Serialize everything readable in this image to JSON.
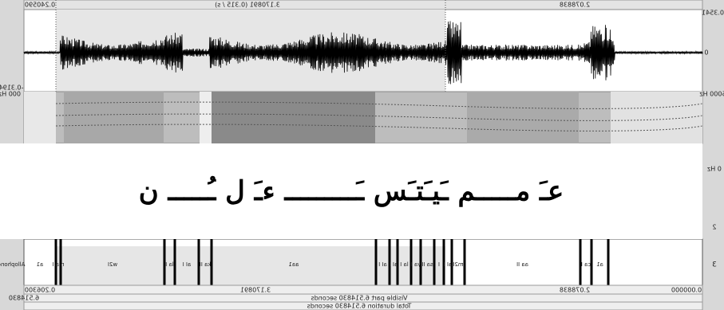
{
  "top_bar": {
    "left": "0.240590",
    "center": "3.170891 (0.315 / s)",
    "right": "2.078838"
  },
  "side_labels": {
    "wave_max": "0.3541",
    "wave_zero": "0",
    "wave_min": "-0.3194",
    "spec_max": "5000 Hz",
    "spec_max_cut": "000 Hz",
    "spec_min": "0 Hz",
    "spec_mid": "2",
    "tier_number": "3"
  },
  "overlay_text": "عـَ مـــــم ـَيـَتـَس ـَـــــــــ ءـَ ل ـُـــــ ن",
  "tier": {
    "name": "Allophone",
    "intervals": [
      "a1",
      "n a I",
      "w2I",
      "la I",
      "aI I",
      "ka II",
      "aa1",
      "aI I",
      "aI I",
      "la I",
      "ya I",
      "sa II",
      "I",
      "aI I",
      "m2I",
      "aa II",
      "ca I",
      "a1"
    ]
  },
  "bottom": {
    "row1": [
      "0.206300",
      "3.170891",
      "2.078838",
      "0.000000"
    ],
    "row2_left": "6.514830",
    "row2_center": "Visible part 6.514830 seconds",
    "row3": "Total duration 6.514830 seconds"
  }
}
